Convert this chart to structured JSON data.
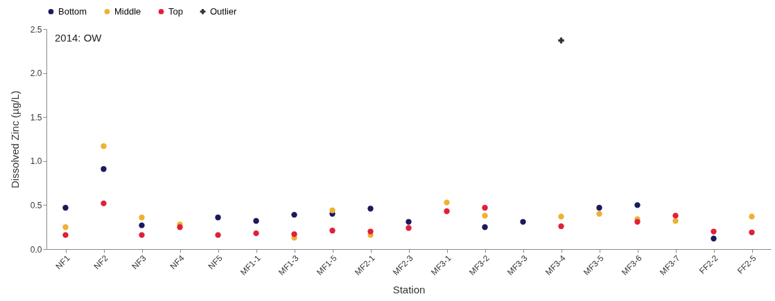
{
  "chart_data": {
    "type": "scatter",
    "xlabel": "Station",
    "ylabel": "Dissolved Zinc (µg/L)",
    "annotations": [
      "2014: OW"
    ],
    "categories": [
      "NF1",
      "NF2",
      "NF3",
      "NF4",
      "NF5",
      "MF1-1",
      "MF1-3",
      "MF1-5",
      "MF2-1",
      "MF2-3",
      "MF3-1",
      "MF3-2",
      "MF3-3",
      "MF3-4",
      "MF3-5",
      "MF3-6",
      "MF3-7",
      "FF2-2",
      "FF2-5"
    ],
    "series": [
      {
        "name": "Bottom",
        "color": "#1a1a5e",
        "marker": "circle",
        "values": [
          0.47,
          0.91,
          0.27,
          null,
          0.36,
          0.32,
          0.39,
          0.4,
          0.46,
          0.31,
          null,
          0.25,
          0.31,
          null,
          0.47,
          0.5,
          null,
          0.12,
          null
        ]
      },
      {
        "name": "Middle",
        "color": "#f0b030",
        "marker": "circle",
        "values": [
          0.25,
          1.17,
          0.36,
          0.28,
          null,
          null,
          0.13,
          0.44,
          0.16,
          null,
          0.53,
          0.38,
          null,
          0.37,
          0.4,
          0.34,
          0.32,
          null,
          0.37
        ]
      },
      {
        "name": "Top",
        "color": "#e0203a",
        "marker": "circle",
        "values": [
          0.16,
          0.52,
          0.16,
          0.25,
          0.16,
          0.18,
          0.17,
          0.21,
          0.2,
          0.24,
          0.43,
          0.47,
          null,
          0.26,
          null,
          0.31,
          0.38,
          0.2,
          0.19
        ]
      },
      {
        "name": "Outlier",
        "color": "#333333",
        "marker": "cross",
        "values": [
          null,
          null,
          null,
          null,
          null,
          null,
          null,
          null,
          null,
          null,
          null,
          null,
          null,
          2.37,
          null,
          null,
          null,
          null,
          null
        ]
      }
    ],
    "ylim": [
      0,
      2.5
    ],
    "yticks": [
      {
        "value": 0,
        "label": "0.0"
      },
      {
        "value": 0.5,
        "label": "0.5"
      },
      {
        "value": 1,
        "label": "1.0"
      },
      {
        "value": 1.5,
        "label": "1.5"
      },
      {
        "value": 2,
        "label": "2.0"
      },
      {
        "value": 2.5,
        "label": "2.5"
      }
    ],
    "grid": false,
    "legend": "top"
  }
}
